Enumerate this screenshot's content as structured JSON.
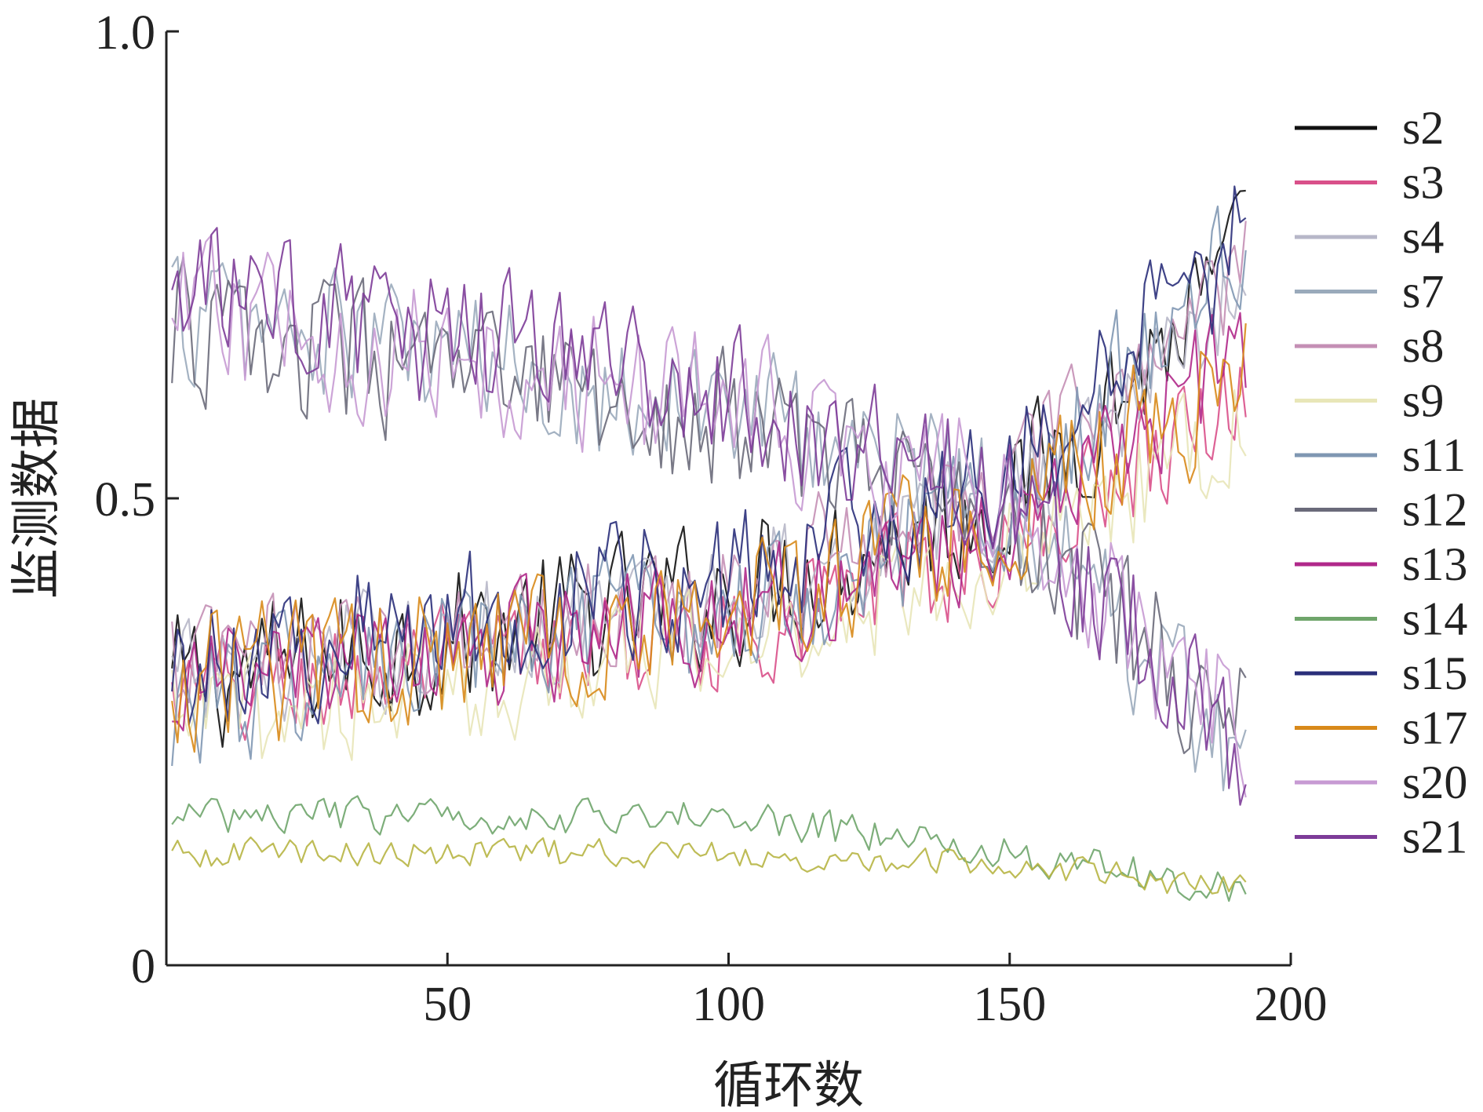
{
  "chart_data": {
    "type": "line",
    "xlabel": "循环数",
    "ylabel": "监测数据",
    "xlim": [
      0,
      200
    ],
    "ylim": [
      0,
      1.0
    ],
    "x_ticks": [
      {
        "value": 50,
        "label": "50"
      },
      {
        "value": 100,
        "label": "100"
      },
      {
        "value": 150,
        "label": "150"
      },
      {
        "value": 200,
        "label": "200"
      }
    ],
    "y_ticks": [
      {
        "value": 0,
        "label": "0"
      },
      {
        "value": 0.5,
        "label": "0.5"
      },
      {
        "value": 1.0,
        "label": "1.0"
      }
    ],
    "grid": false,
    "legend_position": "right",
    "x_range_of_data": [
      1,
      192
    ],
    "series": [
      {
        "name": "s2",
        "color": "#111111",
        "trend": [
          [
            1,
            0.3
          ],
          [
            100,
            0.4
          ],
          [
            150,
            0.5
          ],
          [
            192,
            0.75
          ]
        ],
        "noise": 0.06
      },
      {
        "name": "s3",
        "color": "#d9508a",
        "trend": [
          [
            1,
            0.28
          ],
          [
            100,
            0.36
          ],
          [
            150,
            0.45
          ],
          [
            192,
            0.62
          ]
        ],
        "noise": 0.05
      },
      {
        "name": "s4",
        "color": "#b7b7c8",
        "trend": [
          [
            1,
            0.3
          ],
          [
            100,
            0.4
          ],
          [
            150,
            0.5
          ],
          [
            192,
            0.72
          ]
        ],
        "noise": 0.05
      },
      {
        "name": "s7",
        "color": "#9aaabb",
        "trend": [
          [
            1,
            0.7
          ],
          [
            100,
            0.6
          ],
          [
            150,
            0.5
          ],
          [
            192,
            0.22
          ]
        ],
        "noise": 0.06
      },
      {
        "name": "s8",
        "color": "#c48fb5",
        "trend": [
          [
            1,
            0.32
          ],
          [
            100,
            0.4
          ],
          [
            150,
            0.52
          ],
          [
            192,
            0.74
          ]
        ],
        "noise": 0.05
      },
      {
        "name": "s9",
        "color": "#e8e6b8",
        "trend": [
          [
            1,
            0.26
          ],
          [
            100,
            0.34
          ],
          [
            150,
            0.44
          ],
          [
            192,
            0.58
          ]
        ],
        "noise": 0.05
      },
      {
        "name": "s11",
        "color": "#7f97b2",
        "trend": [
          [
            1,
            0.28
          ],
          [
            100,
            0.38
          ],
          [
            150,
            0.5
          ],
          [
            192,
            0.78
          ]
        ],
        "noise": 0.06
      },
      {
        "name": "s12",
        "color": "#6a6a7a",
        "trend": [
          [
            1,
            0.68
          ],
          [
            100,
            0.58
          ],
          [
            150,
            0.48
          ],
          [
            192,
            0.25
          ]
        ],
        "noise": 0.06
      },
      {
        "name": "s13",
        "color": "#b0288a",
        "trend": [
          [
            1,
            0.3
          ],
          [
            100,
            0.37
          ],
          [
            150,
            0.47
          ],
          [
            192,
            0.66
          ]
        ],
        "noise": 0.05
      },
      {
        "name": "s14",
        "color": "#6fa56b",
        "trend": [
          [
            1,
            0.16
          ],
          [
            100,
            0.16
          ],
          [
            150,
            0.12
          ],
          [
            192,
            0.08
          ]
        ],
        "noise": 0.015
      },
      {
        "name": "s15",
        "color": "#2a2f7a",
        "trend": [
          [
            1,
            0.32
          ],
          [
            100,
            0.42
          ],
          [
            150,
            0.52
          ],
          [
            192,
            0.78
          ]
        ],
        "noise": 0.06
      },
      {
        "name": "s17",
        "color": "#d8891a",
        "trend": [
          [
            1,
            0.3
          ],
          [
            100,
            0.38
          ],
          [
            150,
            0.48
          ],
          [
            192,
            0.64
          ]
        ],
        "noise": 0.06
      },
      {
        "name": "s20",
        "color": "#c79ad3",
        "trend": [
          [
            1,
            0.7
          ],
          [
            100,
            0.6
          ],
          [
            150,
            0.5
          ],
          [
            192,
            0.24
          ]
        ],
        "noise": 0.06
      },
      {
        "name": "s21",
        "color": "#7d3c98",
        "trend": [
          [
            1,
            0.72
          ],
          [
            100,
            0.62
          ],
          [
            150,
            0.5
          ],
          [
            192,
            0.22
          ]
        ],
        "noise": 0.06
      },
      {
        "name": "",
        "color": "#b7b544",
        "trend": [
          [
            1,
            0.12
          ],
          [
            100,
            0.12
          ],
          [
            150,
            0.11
          ],
          [
            192,
            0.08
          ]
        ],
        "noise": 0.012
      }
    ]
  }
}
